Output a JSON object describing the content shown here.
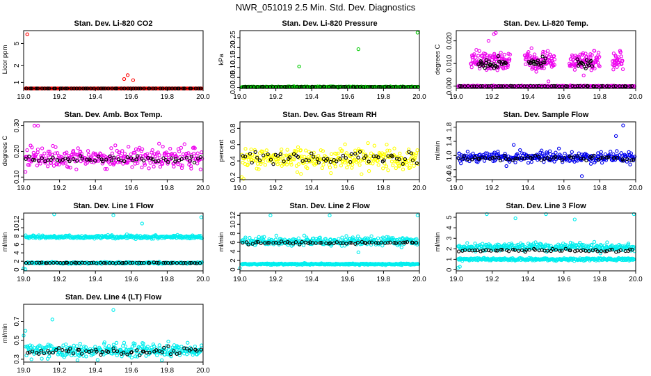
{
  "figure": {
    "title": "NWR_051019  2.5 Min. Std. Dev. Diagnostics"
  },
  "colors": {
    "data": "#000000",
    "red": "#ff0000",
    "green": "#00cc00",
    "magenta": "#ee00ee",
    "yellow": "#ffff00",
    "blue": "#0000ee",
    "cyan": "#00eeee"
  },
  "chart_data": [
    {
      "id": "co2",
      "type": "scatter",
      "title": "Stan. Dev. Li-820 CO2",
      "ylabel": "Licor ppm",
      "xlim": [
        19.0,
        20.0
      ],
      "xticks": [
        "19.0",
        "19.2",
        "19.4",
        "19.6",
        "19.8",
        "20.0"
      ],
      "yscale": "log",
      "ylim": [
        0.78,
        8.5
      ],
      "yticks": [
        {
          "v": 1,
          "label": "1"
        },
        {
          "v": 2,
          "label": "2"
        },
        {
          "v": 5,
          "label": "5"
        }
      ],
      "series": [
        {
          "name": "raw",
          "color": "red",
          "bands": [
            {
              "center": 0.73,
              "spread": 0.04
            }
          ],
          "outliers": [
            [
              19.02,
              7.3
            ],
            [
              19.58,
              1.35
            ],
            [
              19.56,
              1.15
            ],
            [
              19.61,
              1.1
            ]
          ]
        },
        {
          "name": "mean",
          "color": "black",
          "bands": [
            {
              "center": 0.73,
              "spread": 0.015
            }
          ]
        }
      ]
    },
    {
      "id": "pressure",
      "type": "scatter",
      "title": "Stan. Dev. Li-820 Pressure",
      "ylabel": "kPa",
      "xlim": [
        19.0,
        20.0
      ],
      "xticks": [
        "19.0",
        "19.2",
        "19.4",
        "19.6",
        "19.8",
        "20.0"
      ],
      "ylim": [
        -0.005,
        0.285
      ],
      "yticks": [
        {
          "v": 0,
          "label": "0.00"
        },
        {
          "v": 0.05,
          "label": "0.05"
        },
        {
          "v": 0.1,
          "label": "0.10"
        },
        {
          "v": 0.15,
          "label": "0.15"
        },
        {
          "v": 0.2,
          "label": "0.20"
        },
        {
          "v": 0.25,
          "label": "0.25"
        }
      ],
      "series": [
        {
          "name": "raw",
          "color": "green",
          "bands": [
            {
              "center": 0.003,
              "spread": 0.002
            }
          ],
          "outliers": [
            [
              19.33,
              0.105
            ],
            [
              19.66,
              0.192
            ],
            [
              19.99,
              0.275
            ]
          ]
        },
        {
          "name": "mean",
          "color": "black",
          "bands": [
            {
              "center": 0.003,
              "spread": 0.001
            }
          ]
        }
      ]
    },
    {
      "id": "temp",
      "type": "scatter",
      "title": "Stan. Dev. Li-820 Temp.",
      "ylabel": "degrees C",
      "xlim": [
        19.0,
        20.0
      ],
      "xticks": [
        "19.0",
        "19.2",
        "19.4",
        "19.6",
        "19.8",
        "20.0"
      ],
      "ylim": [
        -0.001,
        0.0245
      ],
      "yticks": [
        {
          "v": 0,
          "label": "0.000"
        },
        {
          "v": 0.01,
          "label": "0.010"
        },
        {
          "v": 0.02,
          "label": "0.020"
        }
      ],
      "series": [
        {
          "name": "raw",
          "color": "magenta",
          "bands": [
            {
              "center": 0.0,
              "spread": 0.0002
            },
            {
              "center": 0.011,
              "spread": 0.004,
              "ranges": [
                [
                  19.08,
                  19.3
                ],
                [
                  19.38,
                  19.55
                ],
                [
                  19.63,
                  19.8
                ],
                [
                  19.87,
                  19.93
                ]
              ]
            }
          ],
          "outliers": [
            [
              19.21,
              0.023
            ],
            [
              19.22,
              0.0235
            ],
            [
              19.18,
              0.02
            ]
          ]
        },
        {
          "name": "mean",
          "color": "black",
          "bands": [
            {
              "center": 0.0,
              "spread": 0.0001
            },
            {
              "center": 0.01,
              "spread": 0.002,
              "ranges": [
                [
                  19.12,
                  19.28
                ],
                [
                  19.4,
                  19.5
                ],
                [
                  19.67,
                  19.76
                ]
              ]
            }
          ]
        }
      ]
    },
    {
      "id": "ambbox",
      "type": "scatter",
      "title": "Stan. Dev. Amb. Box Temp.",
      "ylabel": "degrees C",
      "xlim": [
        19.0,
        20.0
      ],
      "xticks": [
        "19.0",
        "19.2",
        "19.4",
        "19.6",
        "19.8",
        "20.0"
      ],
      "ylim": [
        0.09,
        0.315
      ],
      "yticks": [
        {
          "v": 0.1,
          "label": "0.10"
        },
        {
          "v": 0.2,
          "label": "0.20"
        },
        {
          "v": 0.3,
          "label": "0.30"
        }
      ],
      "series": [
        {
          "name": "raw",
          "color": "magenta",
          "bands": [
            {
              "center": 0.175,
              "spread": 0.04
            }
          ],
          "outliers": [
            [
              19.06,
              0.3
            ],
            [
              19.08,
              0.3
            ],
            [
              19.01,
              0.12
            ]
          ]
        },
        {
          "name": "mean",
          "color": "black",
          "bands": [
            {
              "center": 0.17,
              "spread": 0.015
            }
          ]
        }
      ]
    },
    {
      "id": "rh",
      "type": "scatter",
      "title": "Stan. Dev. Gas Stream RH",
      "ylabel": "percent",
      "xlim": [
        19.0,
        20.0
      ],
      "xticks": [
        "19.0",
        "19.2",
        "19.4",
        "19.6",
        "19.8",
        "20.0"
      ],
      "ylim": [
        0.17,
        0.88
      ],
      "yticks": [
        {
          "v": 0.2,
          "label": "0.2"
        },
        {
          "v": 0.4,
          "label": "0.4"
        },
        {
          "v": 0.6,
          "label": "0.6"
        },
        {
          "v": 0.8,
          "label": "0.8"
        }
      ],
      "series": [
        {
          "name": "raw",
          "color": "yellow",
          "bands": [
            {
              "center": 0.43,
              "spread": 0.13
            }
          ],
          "outliers": [
            [
              19.01,
              0.2
            ],
            [
              19.02,
              0.18
            ],
            [
              19.34,
              0.24
            ]
          ]
        },
        {
          "name": "mean",
          "color": "black",
          "bands": [
            {
              "center": 0.43,
              "spread": 0.08
            }
          ]
        }
      ]
    },
    {
      "id": "sampleflow",
      "type": "scatter",
      "title": "Stan. Dev. Sample Flow",
      "ylabel": "ml/min",
      "xlim": [
        19.0,
        20.0
      ],
      "xticks": [
        "19.0",
        "19.2",
        "19.4",
        "19.6",
        "19.8",
        "20.0"
      ],
      "ylim": [
        0.32,
        1.95
      ],
      "yticks": [
        {
          "v": 0.4,
          "label": "0.4"
        },
        {
          "v": 0.6,
          "label": "0.6"
        },
        {
          "v": 1.0,
          "label": "1.0"
        },
        {
          "v": 1.4,
          "label": "1.4"
        },
        {
          "v": 1.8,
          "label": "1.8"
        }
      ],
      "series": [
        {
          "name": "raw",
          "color": "blue",
          "bands": [
            {
              "center": 0.95,
              "spread": 0.14
            }
          ],
          "outliers": [
            [
              19.93,
              1.85
            ],
            [
              19.32,
              1.3
            ],
            [
              19.89,
              1.55
            ],
            [
              19.7,
              0.42
            ]
          ]
        },
        {
          "name": "mean",
          "color": "black",
          "bands": [
            {
              "center": 0.92,
              "spread": 0.08
            }
          ]
        }
      ]
    },
    {
      "id": "line1",
      "type": "scatter",
      "title": "Stan. Dev. Line 1 Flow",
      "ylabel": "ml/min",
      "xlim": [
        19.0,
        20.0
      ],
      "xticks": [
        "19.0",
        "19.2",
        "19.4",
        "19.6",
        "19.8",
        "20.0"
      ],
      "ylim": [
        -0.3,
        13.5
      ],
      "yticks": [
        {
          "v": 0,
          "label": "0"
        },
        {
          "v": 2,
          "label": "2"
        },
        {
          "v": 4,
          "label": "4"
        },
        {
          "v": 6,
          "label": "6"
        },
        {
          "v": 8,
          "label": "8"
        },
        {
          "v": 10,
          "label": "10"
        },
        {
          "v": 12,
          "label": "12"
        }
      ],
      "series": [
        {
          "name": "raw",
          "color": "cyan",
          "bands": [
            {
              "center": 7.8,
              "spread": 0.35
            },
            {
              "center": 1.6,
              "spread": 0.2
            }
          ],
          "outliers": [
            [
              19.0,
              0.3
            ],
            [
              19.01,
              0.1
            ],
            [
              19.17,
              13.2
            ],
            [
              19.5,
              13.0
            ],
            [
              19.66,
              11.0
            ],
            [
              19.99,
              12.5
            ]
          ]
        },
        {
          "name": "mean",
          "color": "black",
          "bands": [
            {
              "center": 1.6,
              "spread": 0.08
            }
          ]
        }
      ]
    },
    {
      "id": "line2",
      "type": "scatter",
      "title": "Stan. Dev. Line 2 Flow",
      "ylabel": "ml/min",
      "xlim": [
        19.0,
        20.0
      ],
      "xticks": [
        "19.0",
        "19.2",
        "19.4",
        "19.6",
        "19.8",
        "20.0"
      ],
      "ylim": [
        -0.3,
        12.5
      ],
      "yticks": [
        {
          "v": 0,
          "label": "0"
        },
        {
          "v": 2,
          "label": "2"
        },
        {
          "v": 4,
          "label": "4"
        },
        {
          "v": 6,
          "label": "6"
        },
        {
          "v": 8,
          "label": "8"
        },
        {
          "v": 10,
          "label": "10"
        },
        {
          "v": 12,
          "label": "12"
        }
      ],
      "series": [
        {
          "name": "raw",
          "color": "cyan",
          "bands": [
            {
              "center": 6.3,
              "spread": 1.0
            },
            {
              "center": 1.2,
              "spread": 0.15
            }
          ],
          "outliers": [
            [
              19.0,
              0.3
            ],
            [
              19.17,
              12.0
            ],
            [
              19.5,
              12.0
            ],
            [
              19.99,
              12.0
            ],
            [
              19.66,
              3.8
            ]
          ]
        },
        {
          "name": "mean",
          "color": "black",
          "bands": [
            {
              "center": 5.9,
              "spread": 0.3
            }
          ]
        }
      ]
    },
    {
      "id": "line3",
      "type": "scatter",
      "title": "Stan. Dev. Line 3 Flow",
      "ylabel": "ml/min",
      "xlim": [
        19.0,
        20.0
      ],
      "xticks": [
        "19.0",
        "19.2",
        "19.4",
        "19.6",
        "19.8",
        "20.0"
      ],
      "ylim": [
        -0.1,
        5.4
      ],
      "yticks": [
        {
          "v": 0,
          "label": "0"
        },
        {
          "v": 1,
          "label": "1"
        },
        {
          "v": 2,
          "label": "2"
        },
        {
          "v": 3,
          "label": "3"
        },
        {
          "v": 4,
          "label": "4"
        },
        {
          "v": 5,
          "label": "5"
        }
      ],
      "series": [
        {
          "name": "raw",
          "color": "cyan",
          "bands": [
            {
              "center": 2.15,
              "spread": 0.35
            },
            {
              "center": 1.0,
              "spread": 0.12
            }
          ],
          "outliers": [
            [
              19.01,
              0.2
            ],
            [
              19.02,
              0.3
            ],
            [
              19.17,
              5.3
            ],
            [
              19.33,
              4.9
            ],
            [
              19.5,
              5.3
            ],
            [
              19.66,
              4.8
            ],
            [
              19.99,
              5.3
            ]
          ]
        },
        {
          "name": "mean",
          "color": "black",
          "bands": [
            {
              "center": 1.85,
              "spread": 0.15
            }
          ]
        }
      ]
    },
    {
      "id": "line4",
      "type": "scatter",
      "title": "Stan. Dev. Line 4 (LT) Flow",
      "ylabel": "ml/min",
      "xlim": [
        19.0,
        20.0
      ],
      "xticks": [
        "19.0",
        "19.2",
        "19.4",
        "19.6",
        "19.8",
        "20.0"
      ],
      "ylim": [
        0.27,
        0.88
      ],
      "yticks": [
        {
          "v": 0.3,
          "label": "0.3"
        },
        {
          "v": 0.5,
          "label": "0.5"
        },
        {
          "v": 0.7,
          "label": "0.7"
        }
      ],
      "series": [
        {
          "name": "raw",
          "color": "cyan",
          "bands": [
            {
              "center": 0.39,
              "spread": 0.07
            }
          ],
          "outliers": [
            [
              19.01,
              0.6
            ],
            [
              19.0,
              0.55
            ],
            [
              19.16,
              0.72
            ],
            [
              19.5,
              0.82
            ],
            [
              19.3,
              0.29
            ],
            [
              19.77,
              0.29
            ]
          ]
        },
        {
          "name": "mean",
          "color": "black",
          "bands": [
            {
              "center": 0.38,
              "spread": 0.04
            }
          ]
        }
      ]
    }
  ]
}
